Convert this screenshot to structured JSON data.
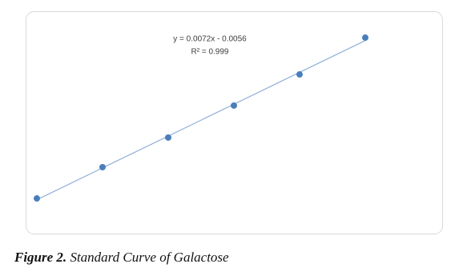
{
  "chart_data": {
    "type": "scatter",
    "annotations": [
      "y = 0.0072x - 0.0056",
      "R² = 0.999"
    ],
    "x": [
      0,
      20,
      40,
      60,
      80,
      100
    ],
    "series": [
      {
        "color": "#4a7ebb",
        "values": [
          -0.0056,
          0.137,
          0.272,
          0.418,
          0.56,
          0.728
        ]
      }
    ],
    "trendline_color": "#8fb0d8",
    "xlim": [
      0,
      100
    ],
    "ylim": [
      -0.1,
      0.8
    ]
  },
  "caption": {
    "label": "Figure 2.",
    "text": "Standard Curve of Galactose"
  }
}
